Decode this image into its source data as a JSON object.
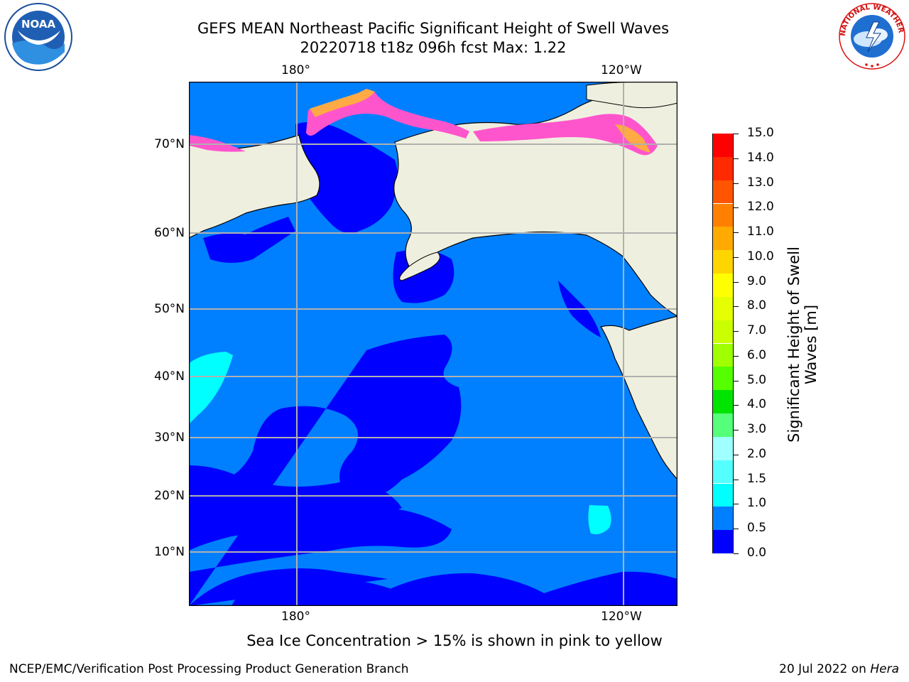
{
  "title_line1": "GEFS MEAN Northeast Pacific Significant Height of Swell Waves",
  "title_line2": "20220718 t18z 096h fcst   Max: 1.22",
  "logos": {
    "noaa_text": "NOAA",
    "nws_text": "NATIONAL WEATHER SERVICE"
  },
  "map": {
    "lon_labels_top": [
      "180°",
      "120°W"
    ],
    "lon_labels_bottom": [
      "180°",
      "120°W"
    ],
    "lat_labels": [
      "70°N",
      "60°N",
      "50°N",
      "40°N",
      "30°N",
      "20°N",
      "10°N"
    ]
  },
  "colorbar": {
    "label": "Significant Height of Swell Waves [m]",
    "ticks": [
      "15.0",
      "14.0",
      "13.0",
      "12.0",
      "11.0",
      "10.0",
      "9.0",
      "8.0",
      "7.0",
      "6.0",
      "5.0",
      "4.0",
      "3.0",
      "2.0",
      "1.5",
      "1.0",
      "0.5",
      "0.0"
    ],
    "colors": [
      "#ff0000",
      "#ff2a00",
      "#ff5500",
      "#ff8000",
      "#ffaa00",
      "#ffd500",
      "#ffff00",
      "#e5ff00",
      "#cbff00",
      "#a0ff00",
      "#55ff00",
      "#00e400",
      "#55ff7a",
      "#a0ffff",
      "#55ffff",
      "#00ffff",
      "#0080ff",
      "#0000ff"
    ]
  },
  "ice_note": "Sea Ice Concentration > 15% is shown in pink to yellow",
  "footer_left": "NCEP/EMC/Verification Post Processing Product Generation Branch",
  "footer_date": "20 Jul 2022 on ",
  "footer_host": "Hera"
}
